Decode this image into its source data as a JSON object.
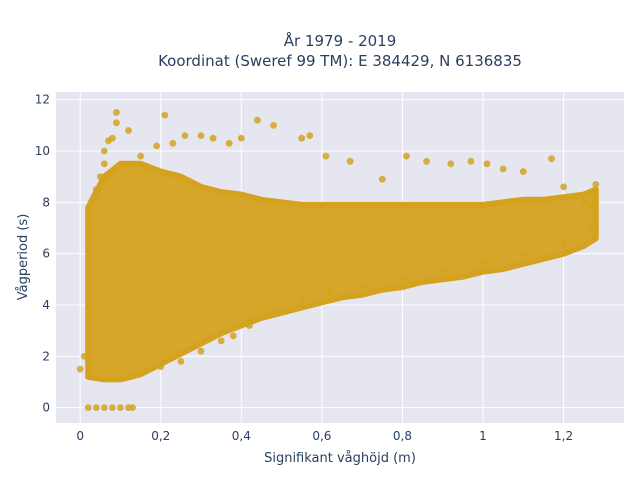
{
  "chart_data": {
    "type": "scatter",
    "title_lines": [
      "År 1979 - 2019",
      "Koordinat (Sweref 99 TM): E 384429, N 6136835"
    ],
    "xlabel": "Signifikant våghöjd (m)",
    "ylabel": "Vågperiod (s)",
    "xlim": [
      -0.06,
      1.35
    ],
    "ylim": [
      -0.6,
      12.3
    ],
    "x_ticks": [
      0,
      0.2,
      0.4,
      0.6,
      0.8,
      1,
      1.2
    ],
    "x_tick_labels": [
      "0",
      "0,2",
      "0,4",
      "0,6",
      "0,8",
      "1",
      "1,2"
    ],
    "y_ticks": [
      0,
      2,
      4,
      6,
      8,
      10,
      12
    ],
    "y_tick_labels": [
      "0",
      "2",
      "4",
      "6",
      "8",
      "10",
      "12"
    ],
    "grid": true,
    "background_color": "#e5e6f0",
    "marker_color": "#d4a21f",
    "series": [
      {
        "points": [
          [
            0.02,
            0.0
          ],
          [
            0.04,
            0.0
          ],
          [
            0.06,
            0.0
          ],
          [
            0.08,
            0.0
          ],
          [
            0.1,
            0.0
          ],
          [
            0.12,
            0.0
          ],
          [
            0.13,
            0.0
          ],
          [
            0.0,
            1.5
          ],
          [
            0.01,
            2.0
          ],
          [
            0.02,
            6.7
          ],
          [
            0.02,
            7.6
          ],
          [
            0.03,
            8.0
          ],
          [
            0.04,
            8.5
          ],
          [
            0.05,
            9.0
          ],
          [
            0.06,
            9.5
          ],
          [
            0.06,
            10.0
          ],
          [
            0.07,
            10.4
          ],
          [
            0.08,
            10.5
          ],
          [
            0.09,
            11.1
          ],
          [
            0.09,
            11.5
          ],
          [
            0.12,
            10.8
          ],
          [
            0.15,
            9.8
          ],
          [
            0.19,
            10.2
          ],
          [
            0.21,
            11.4
          ],
          [
            0.23,
            10.3
          ],
          [
            0.26,
            10.6
          ],
          [
            0.3,
            10.6
          ],
          [
            0.33,
            10.5
          ],
          [
            0.37,
            10.3
          ],
          [
            0.4,
            10.5
          ],
          [
            0.44,
            11.2
          ],
          [
            0.48,
            11.0
          ],
          [
            0.55,
            10.5
          ],
          [
            0.57,
            10.6
          ],
          [
            0.61,
            9.8
          ],
          [
            0.67,
            9.6
          ],
          [
            0.75,
            8.9
          ],
          [
            0.81,
            9.8
          ],
          [
            0.86,
            9.6
          ],
          [
            0.92,
            9.5
          ],
          [
            0.97,
            9.6
          ],
          [
            1.01,
            9.5
          ],
          [
            1.05,
            9.3
          ],
          [
            1.1,
            9.2
          ],
          [
            1.17,
            9.7
          ],
          [
            1.2,
            8.6
          ],
          [
            1.25,
            8.0
          ],
          [
            1.27,
            7.8
          ],
          [
            1.28,
            8.7
          ],
          [
            0.2,
            1.6
          ],
          [
            0.25,
            1.8
          ],
          [
            0.3,
            2.2
          ],
          [
            0.35,
            2.6
          ],
          [
            0.38,
            2.8
          ],
          [
            0.42,
            3.2
          ],
          [
            0.48,
            3.7
          ],
          [
            0.55,
            4.2
          ],
          [
            0.62,
            4.5
          ],
          [
            0.7,
            4.7
          ],
          [
            0.8,
            5.0
          ],
          [
            0.9,
            5.3
          ],
          [
            1.0,
            5.6
          ],
          [
            1.1,
            6.0
          ],
          [
            1.2,
            6.4
          ],
          [
            1.27,
            7.0
          ]
        ]
      }
    ],
    "density_envelope": {
      "x": [
        0.02,
        0.06,
        0.1,
        0.15,
        0.2,
        0.25,
        0.3,
        0.35,
        0.4,
        0.45,
        0.5,
        0.55,
        0.6,
        0.65,
        0.7,
        0.75,
        0.8,
        0.85,
        0.9,
        0.95,
        1.0,
        1.05,
        1.1,
        1.15,
        1.2,
        1.25,
        1.28
      ],
      "y_low": [
        1.2,
        1.1,
        1.1,
        1.3,
        1.7,
        2.1,
        2.5,
        2.9,
        3.2,
        3.5,
        3.7,
        3.9,
        4.1,
        4.3,
        4.4,
        4.6,
        4.7,
        4.9,
        5.0,
        5.1,
        5.3,
        5.4,
        5.6,
        5.8,
        6.0,
        6.3,
        6.6
      ],
      "y_high": [
        7.8,
        9.0,
        9.5,
        9.5,
        9.2,
        9.0,
        8.6,
        8.4,
        8.3,
        8.1,
        8.0,
        7.9,
        7.9,
        7.9,
        7.9,
        7.9,
        7.9,
        7.9,
        7.9,
        7.9,
        7.9,
        8.0,
        8.1,
        8.1,
        8.2,
        8.3,
        8.5
      ]
    }
  }
}
